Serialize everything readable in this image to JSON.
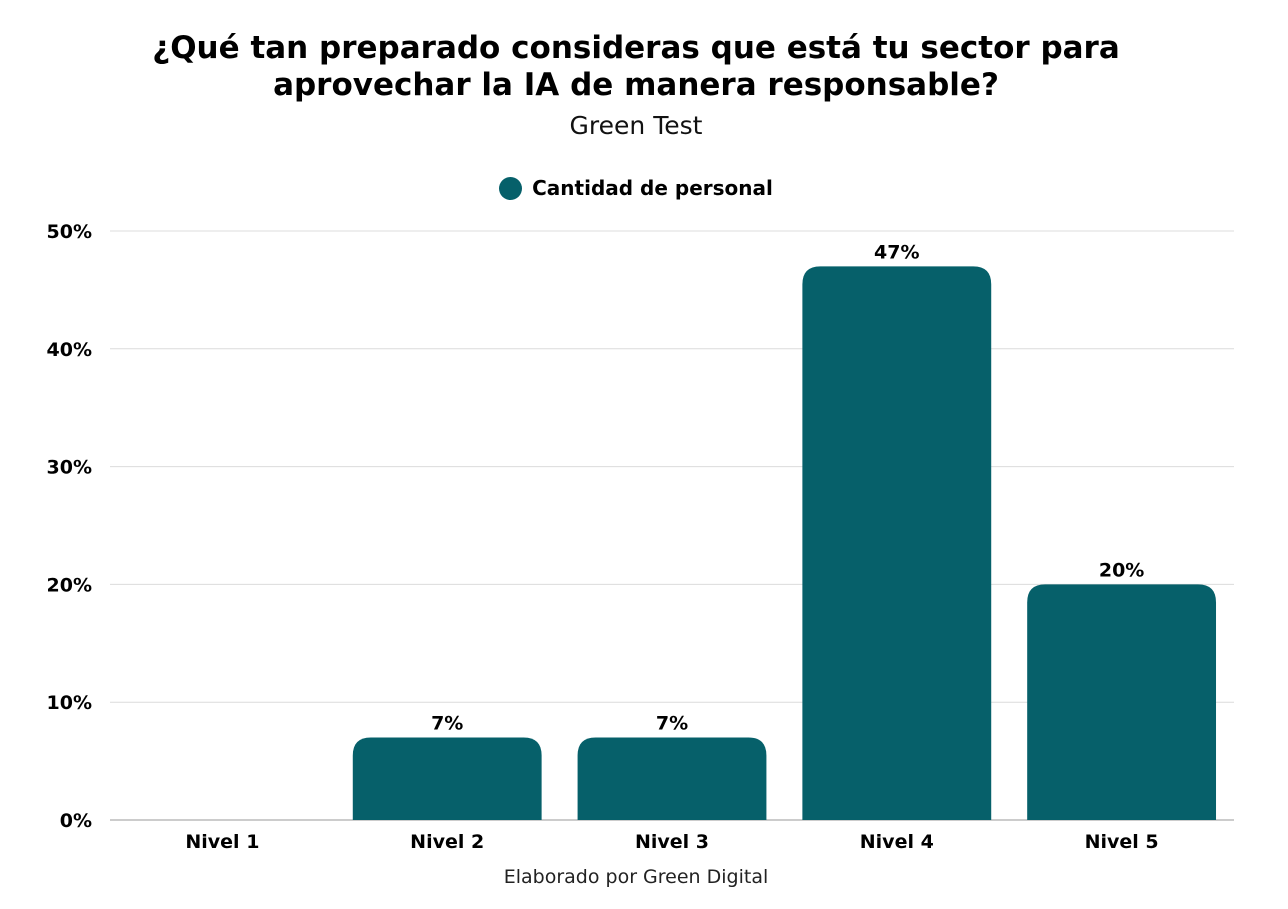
{
  "header": {
    "title_line1": "¿Qué tan preparado consideras que está tu sector para",
    "title_line2": "aprovechar la IA de manera responsable?",
    "subtitle": "Green Test"
  },
  "legend": {
    "label": "Cantidad de personal",
    "color": "#06606A"
  },
  "footer": {
    "text": "Elaborado por Green Digital"
  },
  "chart_data": {
    "type": "bar",
    "title": "¿Qué tan preparado consideras que está tu sector para aprovechar la IA de manera responsable?",
    "subtitle": "Green Test",
    "categories": [
      "Nivel 1",
      "Nivel 2",
      "Nivel 3",
      "Nivel 4",
      "Nivel 5"
    ],
    "series": [
      {
        "name": "Cantidad de personal",
        "values": [
          0,
          7,
          7,
          47,
          20
        ],
        "color": "#06606A"
      }
    ],
    "data_labels": [
      "",
      "7%",
      "7%",
      "47%",
      "20%"
    ],
    "ylim": [
      0,
      50
    ],
    "yticks": [
      0,
      10,
      20,
      30,
      40,
      50
    ],
    "ytick_labels": [
      "0%",
      "10%",
      "20%",
      "30%",
      "40%",
      "50%"
    ],
    "xlabel": "",
    "ylabel": "",
    "grid": true,
    "legend_position": "top-center"
  }
}
